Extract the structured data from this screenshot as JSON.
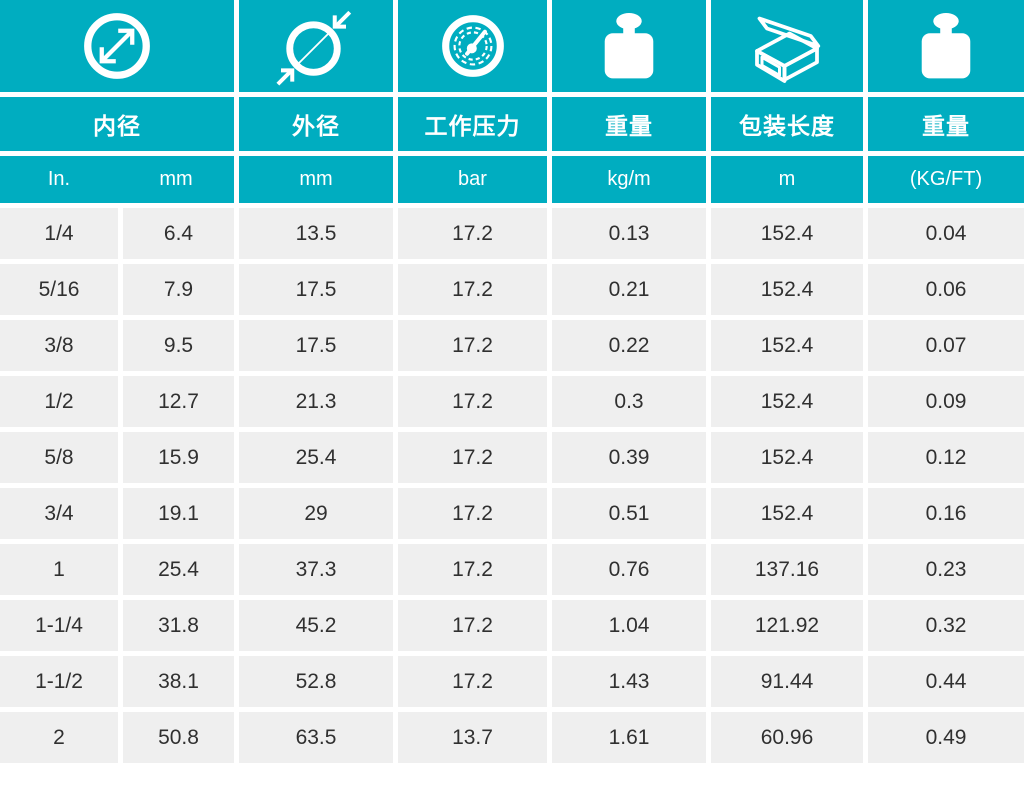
{
  "theme": {
    "teal": "#00ADC0",
    "cell_bg": "#EFEFEF",
    "text_dark": "#303030",
    "header_text": "#FFFFFF",
    "page_bg": "#FFFFFF"
  },
  "table": {
    "column_groups": [
      {
        "label": "内径",
        "icon": "inner-diameter-icon"
      },
      {
        "label": "外径",
        "icon": "outer-diameter-icon"
      },
      {
        "label": "工作压力",
        "icon": "pressure-gauge-icon"
      },
      {
        "label": "重量",
        "icon": "weight-icon"
      },
      {
        "label": "包装长度",
        "icon": "package-box-icon"
      },
      {
        "label": "重量",
        "icon": "weight-icon"
      }
    ],
    "units": [
      "In.",
      "mm",
      "mm",
      "bar",
      "kg/m",
      "m",
      "(KG/FT)"
    ]
  },
  "chart_data": {
    "type": "table",
    "columns": [
      "内径 In.",
      "内径 mm",
      "外径 mm",
      "工作压力 bar",
      "重量 kg/m",
      "包装长度 m",
      "重量 (KG/FT)"
    ],
    "rows": [
      [
        "1/4",
        "6.4",
        "13.5",
        "17.2",
        "0.13",
        "152.4",
        "0.04"
      ],
      [
        "5/16",
        "7.9",
        "17.5",
        "17.2",
        "0.21",
        "152.4",
        "0.06"
      ],
      [
        "3/8",
        "9.5",
        "17.5",
        "17.2",
        "0.22",
        "152.4",
        "0.07"
      ],
      [
        "1/2",
        "12.7",
        "21.3",
        "17.2",
        "0.3",
        "152.4",
        "0.09"
      ],
      [
        "5/8",
        "15.9",
        "25.4",
        "17.2",
        "0.39",
        "152.4",
        "0.12"
      ],
      [
        "3/4",
        "19.1",
        "29",
        "17.2",
        "0.51",
        "152.4",
        "0.16"
      ],
      [
        "1",
        "25.4",
        "37.3",
        "17.2",
        "0.76",
        "137.16",
        "0.23"
      ],
      [
        "1-1/4",
        "31.8",
        "45.2",
        "17.2",
        "1.04",
        "121.92",
        "0.32"
      ],
      [
        "1-1/2",
        "38.1",
        "52.8",
        "17.2",
        "1.43",
        "91.44",
        "0.44"
      ],
      [
        "2",
        "50.8",
        "63.5",
        "13.7",
        "1.61",
        "60.96",
        "0.49"
      ]
    ]
  }
}
